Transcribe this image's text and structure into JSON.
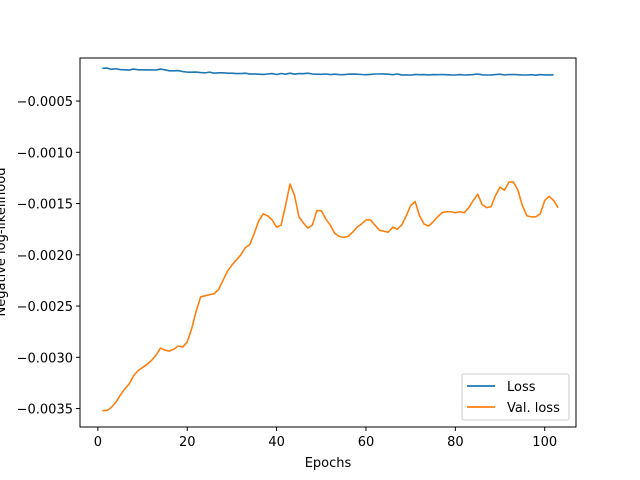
{
  "chart_data": {
    "type": "line",
    "title": "",
    "xlabel": "Epochs",
    "ylabel": "Negative log-likelihood",
    "xlim": [
      -4,
      107
    ],
    "ylim": [
      -0.00368,
      -8e-05
    ],
    "xticks": [
      0,
      20,
      40,
      60,
      80,
      100
    ],
    "yticks": [
      -0.0035,
      -0.003,
      -0.0025,
      -0.002,
      -0.0015,
      -0.001,
      -0.0005
    ],
    "ytick_labels": [
      "−0.0035",
      "−0.0030",
      "−0.0025",
      "−0.0020",
      "−0.0015",
      "−0.0010",
      "−0.0005"
    ],
    "grid": false,
    "legend_position": "lower-right",
    "series": [
      {
        "name": "Loss",
        "color": "#1f77b4",
        "points": [
          [
            1,
            -0.00018
          ],
          [
            2,
            -0.000178
          ],
          [
            3,
            -0.00019
          ],
          [
            4,
            -0.000185
          ],
          [
            5,
            -0.000193
          ],
          [
            6,
            -0.000195
          ],
          [
            7,
            -0.000198
          ],
          [
            8,
            -0.000188
          ],
          [
            9,
            -0.000195
          ],
          [
            10,
            -0.000195
          ],
          [
            11,
            -0.000196
          ],
          [
            12,
            -0.000196
          ],
          [
            13,
            -0.000197
          ],
          [
            14,
            -0.000188
          ],
          [
            15,
            -0.000195
          ],
          [
            16,
            -0.000205
          ],
          [
            17,
            -0.000205
          ],
          [
            18,
            -0.000203
          ],
          [
            19,
            -0.000212
          ],
          [
            20,
            -0.000218
          ],
          [
            21,
            -0.000218
          ],
          [
            22,
            -0.000217
          ],
          [
            23,
            -0.000222
          ],
          [
            24,
            -0.000225
          ],
          [
            25,
            -0.000218
          ],
          [
            26,
            -0.000228
          ],
          [
            27,
            -0.000225
          ],
          [
            28,
            -0.000225
          ],
          [
            29,
            -0.000228
          ],
          [
            30,
            -0.000228
          ],
          [
            31,
            -0.000232
          ],
          [
            32,
            -0.000232
          ],
          [
            33,
            -0.000228
          ],
          [
            34,
            -0.000237
          ],
          [
            35,
            -0.000235
          ],
          [
            36,
            -0.000238
          ],
          [
            37,
            -0.00024
          ],
          [
            38,
            -0.000236
          ],
          [
            39,
            -0.000232
          ],
          [
            40,
            -0.000241
          ],
          [
            41,
            -0.000231
          ],
          [
            42,
            -0.000238
          ],
          [
            43,
            -0.000228
          ],
          [
            44,
            -0.000238
          ],
          [
            45,
            -0.000232
          ],
          [
            46,
            -0.000233
          ],
          [
            47,
            -0.000228
          ],
          [
            48,
            -0.000236
          ],
          [
            49,
            -0.000238
          ],
          [
            50,
            -0.000239
          ],
          [
            51,
            -0.000236
          ],
          [
            52,
            -0.000242
          ],
          [
            53,
            -0.000238
          ],
          [
            54,
            -0.000242
          ],
          [
            55,
            -0.000243
          ],
          [
            56,
            -0.000238
          ],
          [
            57,
            -0.000237
          ],
          [
            58,
            -0.000238
          ],
          [
            59,
            -0.000241
          ],
          [
            60,
            -0.000243
          ],
          [
            61,
            -0.00024
          ],
          [
            62,
            -0.000236
          ],
          [
            63,
            -0.000236
          ],
          [
            64,
            -0.000235
          ],
          [
            65,
            -0.000238
          ],
          [
            66,
            -0.000243
          ],
          [
            67,
            -0.000236
          ],
          [
            68,
            -0.000245
          ],
          [
            69,
            -0.000245
          ],
          [
            70,
            -0.000247
          ],
          [
            71,
            -0.00024
          ],
          [
            72,
            -0.000243
          ],
          [
            73,
            -0.000242
          ],
          [
            74,
            -0.000245
          ],
          [
            75,
            -0.000242
          ],
          [
            76,
            -0.000243
          ],
          [
            77,
            -0.000241
          ],
          [
            78,
            -0.000243
          ],
          [
            79,
            -0.000245
          ],
          [
            80,
            -0.000246
          ],
          [
            81,
            -0.000242
          ],
          [
            82,
            -0.000246
          ],
          [
            83,
            -0.000244
          ],
          [
            84,
            -0.000242
          ],
          [
            85,
            -0.000237
          ],
          [
            86,
            -0.000244
          ],
          [
            87,
            -0.000246
          ],
          [
            88,
            -0.000245
          ],
          [
            89,
            -0.000242
          ],
          [
            90,
            -0.000238
          ],
          [
            91,
            -0.000246
          ],
          [
            92,
            -0.000242
          ],
          [
            93,
            -0.000241
          ],
          [
            94,
            -0.000243
          ],
          [
            95,
            -0.000246
          ],
          [
            96,
            -0.000246
          ],
          [
            97,
            -0.000243
          ],
          [
            98,
            -0.000248
          ],
          [
            99,
            -0.000242
          ],
          [
            100,
            -0.000245
          ],
          [
            101,
            -0.000245
          ],
          [
            102,
            -0.000244
          ]
        ]
      },
      {
        "name": "Val. loss",
        "color": "#ff7f0e",
        "points": [
          [
            1,
            -0.00352
          ],
          [
            2,
            -0.00352
          ],
          [
            3,
            -0.00349
          ],
          [
            4,
            -0.00344
          ],
          [
            5,
            -0.00337
          ],
          [
            6,
            -0.00331
          ],
          [
            7,
            -0.00326
          ],
          [
            8,
            -0.00318
          ],
          [
            9,
            -0.00313
          ],
          [
            10,
            -0.0031
          ],
          [
            11,
            -0.00307
          ],
          [
            12,
            -0.00303
          ],
          [
            13,
            -0.00298
          ],
          [
            14,
            -0.00291
          ],
          [
            15,
            -0.00293
          ],
          [
            16,
            -0.00294
          ],
          [
            17,
            -0.00292
          ],
          [
            18,
            -0.00289
          ],
          [
            19,
            -0.0029
          ],
          [
            20,
            -0.00285
          ],
          [
            21,
            -0.00272
          ],
          [
            22,
            -0.00255
          ],
          [
            23,
            -0.00241
          ],
          [
            24,
            -0.0024
          ],
          [
            25,
            -0.00239
          ],
          [
            26,
            -0.00238
          ],
          [
            27,
            -0.00234
          ],
          [
            28,
            -0.00225
          ],
          [
            29,
            -0.00216
          ],
          [
            30,
            -0.0021
          ],
          [
            31,
            -0.00205
          ],
          [
            32,
            -0.002
          ],
          [
            33,
            -0.00193
          ],
          [
            34,
            -0.0019
          ],
          [
            35,
            -0.00179
          ],
          [
            36,
            -0.00167
          ],
          [
            37,
            -0.0016
          ],
          [
            38,
            -0.00162
          ],
          [
            39,
            -0.00166
          ],
          [
            40,
            -0.00173
          ],
          [
            41,
            -0.00171
          ],
          [
            42,
            -0.00152
          ],
          [
            43,
            -0.00131
          ],
          [
            44,
            -0.00142
          ],
          [
            45,
            -0.00163
          ],
          [
            46,
            -0.00169
          ],
          [
            47,
            -0.00174
          ],
          [
            48,
            -0.00171
          ],
          [
            49,
            -0.00157
          ],
          [
            50,
            -0.00157
          ],
          [
            51,
            -0.00165
          ],
          [
            52,
            -0.00171
          ],
          [
            53,
            -0.00179
          ],
          [
            54,
            -0.00182
          ],
          [
            55,
            -0.00183
          ],
          [
            56,
            -0.00182
          ],
          [
            57,
            -0.00178
          ],
          [
            58,
            -0.00173
          ],
          [
            59,
            -0.0017
          ],
          [
            60,
            -0.00166
          ],
          [
            61,
            -0.00166
          ],
          [
            62,
            -0.00171
          ],
          [
            63,
            -0.00176
          ],
          [
            64,
            -0.00177
          ],
          [
            65,
            -0.00178
          ],
          [
            66,
            -0.00173
          ],
          [
            67,
            -0.00175
          ],
          [
            68,
            -0.00171
          ],
          [
            69,
            -0.00162
          ],
          [
            70,
            -0.00152
          ],
          [
            71,
            -0.00148
          ],
          [
            72,
            -0.00162
          ],
          [
            73,
            -0.0017
          ],
          [
            74,
            -0.00172
          ],
          [
            75,
            -0.00168
          ],
          [
            76,
            -0.00163
          ],
          [
            77,
            -0.00159
          ],
          [
            78,
            -0.00158
          ],
          [
            79,
            -0.00158
          ],
          [
            80,
            -0.00159
          ],
          [
            81,
            -0.00158
          ],
          [
            82,
            -0.00159
          ],
          [
            83,
            -0.00154
          ],
          [
            84,
            -0.00147
          ],
          [
            85,
            -0.00141
          ],
          [
            86,
            -0.00151
          ],
          [
            87,
            -0.00154
          ],
          [
            88,
            -0.00153
          ],
          [
            89,
            -0.00142
          ],
          [
            90,
            -0.00134
          ],
          [
            91,
            -0.00137
          ],
          [
            92,
            -0.00129
          ],
          [
            93,
            -0.00129
          ],
          [
            94,
            -0.00137
          ],
          [
            95,
            -0.00152
          ],
          [
            96,
            -0.00162
          ],
          [
            97,
            -0.00163
          ],
          [
            98,
            -0.00163
          ],
          [
            99,
            -0.0016
          ],
          [
            100,
            -0.00147
          ],
          [
            101,
            -0.00143
          ],
          [
            102,
            -0.00147
          ],
          [
            103,
            -0.00154
          ]
        ]
      }
    ]
  }
}
